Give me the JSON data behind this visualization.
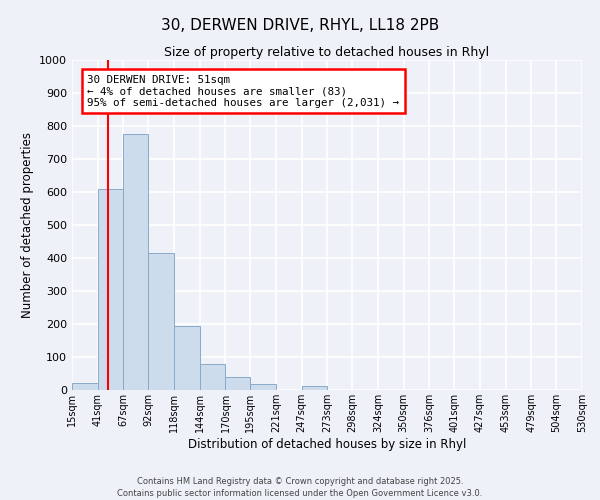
{
  "title": "30, DERWEN DRIVE, RHYL, LL18 2PB",
  "subtitle": "Size of property relative to detached houses in Rhyl",
  "xlabel": "Distribution of detached houses by size in Rhyl",
  "ylabel": "Number of detached properties",
  "bar_color": "#ccdcec",
  "bar_edge_color": "#88aac8",
  "bin_edges": [
    15,
    41,
    67,
    92,
    118,
    144,
    170,
    195,
    221,
    247,
    273,
    298,
    324,
    350,
    376,
    401,
    427,
    453,
    479,
    504,
    530
  ],
  "bar_heights": [
    20,
    610,
    775,
    415,
    195,
    78,
    40,
    18,
    0,
    12,
    0,
    0,
    0,
    0,
    0,
    0,
    0,
    0,
    0,
    0
  ],
  "tick_labels": [
    "15sqm",
    "41sqm",
    "67sqm",
    "92sqm",
    "118sqm",
    "144sqm",
    "170sqm",
    "195sqm",
    "221sqm",
    "247sqm",
    "273sqm",
    "298sqm",
    "324sqm",
    "350sqm",
    "376sqm",
    "401sqm",
    "427sqm",
    "453sqm",
    "479sqm",
    "504sqm",
    "530sqm"
  ],
  "ylim": [
    0,
    1000
  ],
  "yticks": [
    0,
    100,
    200,
    300,
    400,
    500,
    600,
    700,
    800,
    900,
    1000
  ],
  "red_line_x": 51,
  "annotation_title": "30 DERWEN DRIVE: 51sqm",
  "annotation_line2": "← 4% of detached houses are smaller (83)",
  "annotation_line3": "95% of semi-detached houses are larger (2,031) →",
  "background_color": "#eef2f8",
  "grid_color": "#ffffff",
  "footer_line1": "Contains HM Land Registry data © Crown copyright and database right 2025.",
  "footer_line2": "Contains public sector information licensed under the Open Government Licence v3.0."
}
